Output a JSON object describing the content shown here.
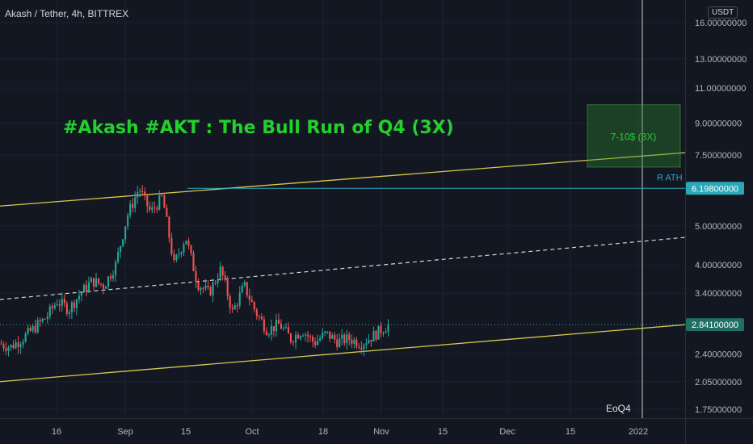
{
  "header": {
    "symbol_title": "Akash / Tether, 4h, BITTREX",
    "currency": "USDT"
  },
  "annotations": {
    "headline": "#Akash #AKT : The Bull Run of Q4 (3X)",
    "target_box_label": "7-10$ (3X)",
    "ath_label": "R ATH",
    "end_marker_label": "EoQ4"
  },
  "colors": {
    "background": "#131722",
    "up_candle": "#26a69a",
    "down_candle": "#ef5350",
    "channel_line": "#d6c94a",
    "headline": "#22d12a",
    "ath_line": "#2aa7b8",
    "last_price_badge": "#1f6f66",
    "target_box": "#2e8b2e"
  },
  "chart_data": {
    "type": "candlestick",
    "title": "Akash / Tether, 4h, BITTREX",
    "scale": "log",
    "x_ticks": [
      "16",
      "Sep",
      "15",
      "Oct",
      "18",
      "Nov",
      "15",
      "Dec",
      "15",
      "2022"
    ],
    "y_ticks": [
      16,
      13,
      11,
      9,
      7.5,
      5,
      4,
      3.4,
      2.4,
      2.05,
      1.75
    ],
    "y_tick_labels": [
      "16.00000000",
      "13.00000000",
      "11.00000000",
      "9.00000000",
      "7.50000000",
      "5.00000000",
      "4.00000000",
      "3.40000000",
      "2.40000000",
      "2.05000000",
      "1.75000000"
    ],
    "ylim": [
      1.6,
      17
    ],
    "price_labels": {
      "ath": "6.19800000",
      "last": "2.84100000"
    },
    "ath_value": 6.198,
    "last_value": 2.841,
    "target_range": [
      7,
      10
    ],
    "channel": {
      "upper": [
        [
          0,
          5.6
        ],
        [
          1,
          7.6
        ]
      ],
      "lower": [
        [
          0,
          2.05
        ],
        [
          1,
          2.84
        ]
      ],
      "mid_dashed": [
        [
          0,
          3.28
        ],
        [
          1,
          4.68
        ]
      ]
    },
    "price_path": [
      [
        0,
        2.55
      ],
      [
        0.03,
        2.5
      ],
      [
        0.06,
        2.62
      ],
      [
        0.09,
        2.78
      ],
      [
        0.12,
        2.95
      ],
      [
        0.15,
        3.25
      ],
      [
        0.18,
        3.1
      ],
      [
        0.21,
        3.4
      ],
      [
        0.24,
        3.65
      ],
      [
        0.27,
        3.55
      ],
      [
        0.3,
        4.0
      ],
      [
        0.33,
        5.3
      ],
      [
        0.36,
        6.2
      ],
      [
        0.39,
        5.4
      ],
      [
        0.42,
        5.9
      ],
      [
        0.45,
        4.0
      ],
      [
        0.48,
        4.7
      ],
      [
        0.51,
        3.6
      ],
      [
        0.54,
        3.4
      ],
      [
        0.57,
        3.9
      ],
      [
        0.6,
        3.05
      ],
      [
        0.63,
        3.55
      ],
      [
        0.66,
        3.05
      ],
      [
        0.69,
        2.75
      ],
      [
        0.72,
        2.85
      ],
      [
        0.75,
        2.62
      ],
      [
        0.78,
        2.75
      ],
      [
        0.81,
        2.56
      ],
      [
        0.84,
        2.7
      ],
      [
        0.87,
        2.58
      ],
      [
        0.9,
        2.62
      ],
      [
        0.93,
        2.55
      ],
      [
        0.96,
        2.66
      ],
      [
        1.0,
        2.84
      ]
    ]
  }
}
